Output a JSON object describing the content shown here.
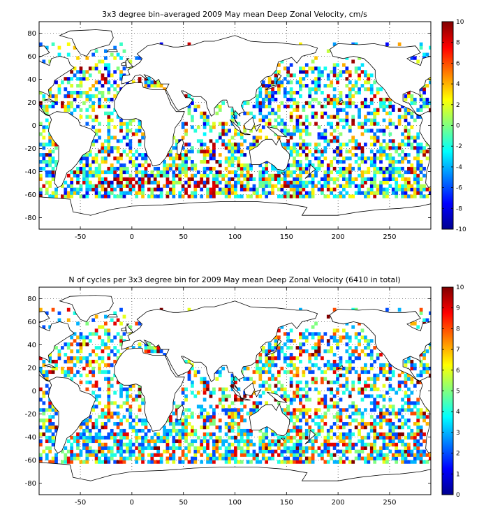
{
  "chart_data": [
    {
      "type": "heatmap",
      "title": "3x3 degree bin–averaged 2009 May mean Deep Zonal Velocity, cm/s",
      "xlabel": "",
      "ylabel": "",
      "xlim": [
        -90,
        290
      ],
      "ylim": [
        -90,
        90
      ],
      "x_ticks": [
        -50,
        0,
        50,
        100,
        150,
        200,
        250
      ],
      "y_ticks": [
        -80,
        -60,
        -40,
        -20,
        0,
        20,
        40,
        60,
        80
      ],
      "grid": true,
      "colormap": "jet",
      "colorbar": {
        "range": [
          -10,
          10
        ],
        "ticks": [
          -10,
          -8,
          -6,
          -4,
          -2,
          0,
          2,
          4,
          6,
          8,
          10
        ]
      },
      "bin_size_deg": 3
    },
    {
      "type": "heatmap",
      "title": "N of cycles per 3x3 degree bin for 2009 May mean Deep Zonal Velocity (6410 in total)",
      "xlabel": "",
      "ylabel": "",
      "xlim": [
        -90,
        290
      ],
      "ylim": [
        -90,
        90
      ],
      "x_ticks": [
        -50,
        0,
        50,
        100,
        150,
        200,
        250
      ],
      "y_ticks": [
        -80,
        -60,
        -40,
        -20,
        0,
        20,
        40,
        60,
        80
      ],
      "grid": true,
      "colormap": "jet",
      "colorbar": {
        "range": [
          0,
          10
        ],
        "ticks": [
          0,
          1,
          2,
          3,
          4,
          5,
          6,
          7,
          8,
          9,
          10
        ]
      },
      "bin_size_deg": 3
    }
  ]
}
